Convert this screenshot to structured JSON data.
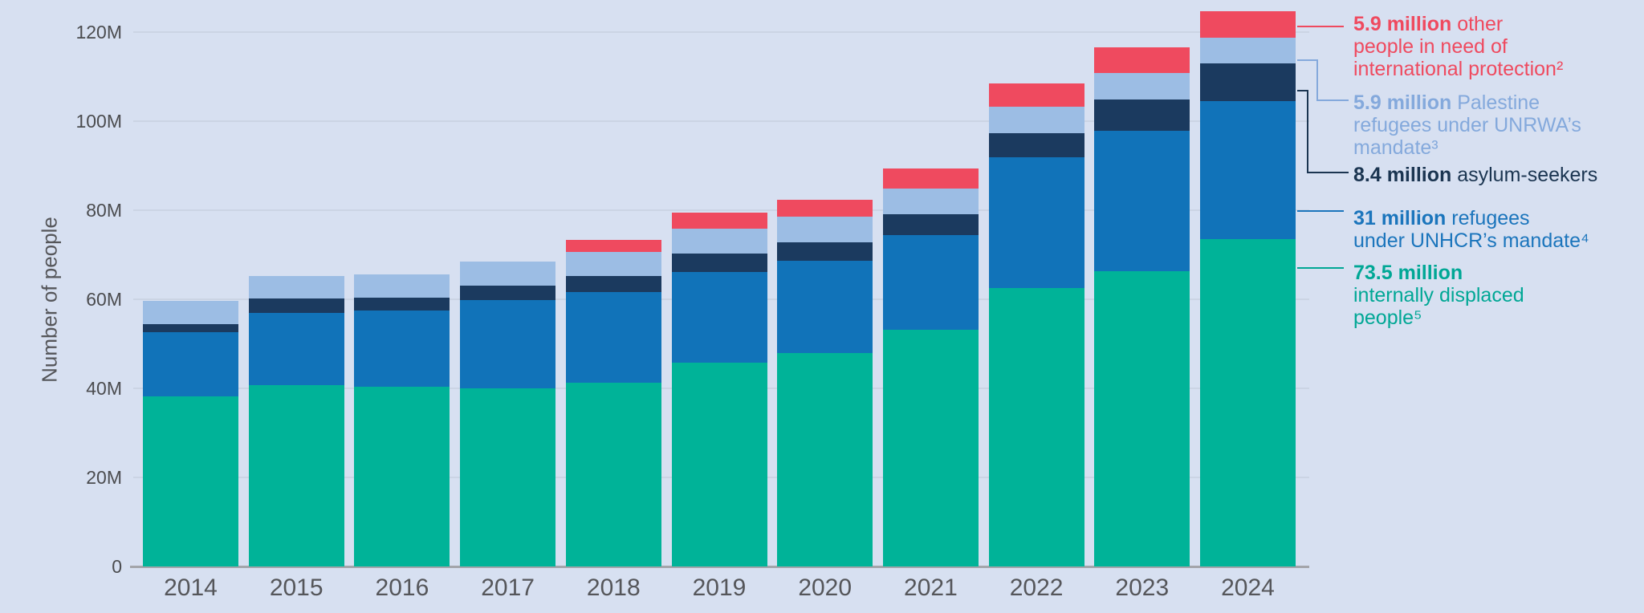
{
  "colors": {
    "idp": "#00b398",
    "refugees": "#1173b9",
    "asylum": "#1b3a5f",
    "unrwa": "#9cbde4",
    "other": "#ef4a5f",
    "background": "#d7e0f1",
    "gridline": "#cbd4e4",
    "axis_line": "#a3a5aa",
    "tick_text": "#4b4c4f",
    "year_text": "#55565a",
    "axis_title_text": "#55565a"
  },
  "chart_data": {
    "type": "bar",
    "stacked": true,
    "title": "",
    "ylabel": "Number of people",
    "unit": "millions of people",
    "grid": true,
    "legend_position": "right",
    "ylim": [
      0,
      120
    ],
    "y_ticks": [
      {
        "label": "0",
        "value": 0
      },
      {
        "label": "20M",
        "value": 20
      },
      {
        "label": "40M",
        "value": 40
      },
      {
        "label": "60M",
        "value": 60
      },
      {
        "label": "80M",
        "value": 80
      },
      {
        "label": "100M",
        "value": 100
      },
      {
        "label": "120M",
        "value": 120
      }
    ],
    "categories": [
      "2014",
      "2015",
      "2016",
      "2017",
      "2018",
      "2019",
      "2020",
      "2021",
      "2022",
      "2023",
      "2024"
    ],
    "series": [
      {
        "name": "Internally displaced people",
        "color_key": "idp",
        "values": [
          38.2,
          40.8,
          40.3,
          40.0,
          41.3,
          45.7,
          48.0,
          53.2,
          62.5,
          66.3,
          73.5
        ]
      },
      {
        "name": "Refugees under UNHCR's mandate",
        "color_key": "refugees",
        "values": [
          14.4,
          16.1,
          17.2,
          19.9,
          20.4,
          20.4,
          20.7,
          21.3,
          29.4,
          31.6,
          31.0
        ]
      },
      {
        "name": "Asylum-seekers",
        "color_key": "asylum",
        "values": [
          1.8,
          3.2,
          2.8,
          3.1,
          3.5,
          4.2,
          4.1,
          4.6,
          5.4,
          6.9,
          8.4
        ]
      },
      {
        "name": "Palestine refugees under UNRWA's mandate",
        "color_key": "unrwa",
        "values": [
          5.2,
          5.2,
          5.3,
          5.4,
          5.5,
          5.6,
          5.7,
          5.8,
          5.9,
          6.0,
          5.9
        ]
      },
      {
        "name": "Other people in need of international protection",
        "color_key": "other",
        "values": [
          0,
          0,
          0,
          0,
          2.6,
          3.6,
          3.9,
          4.4,
          5.2,
          5.8,
          5.9
        ]
      }
    ],
    "totals": [
      59.6,
      65.3,
      65.6,
      68.4,
      73.3,
      79.5,
      82.4,
      89.3,
      108.4,
      116.6,
      124.7
    ]
  },
  "legend": {
    "items": [
      {
        "key": "other",
        "color": "#ef4a5f",
        "amount": "5.9 million",
        "rest": " other",
        "line2": "people in need of",
        "line3": "international protection²"
      },
      {
        "key": "unrwa",
        "color": "#84a9dc",
        "amount": "5.9 million",
        "rest": " Palestine",
        "line2": "refugees under UNRWA’s",
        "line3": "mandate³"
      },
      {
        "key": "asylum",
        "color": "#1b3551",
        "amount": "8.4 million",
        "rest": " asylum-seekers"
      },
      {
        "key": "refugees",
        "color": "#1b75bc",
        "amount": "31 million",
        "rest": " refugees",
        "line2": "under UNHCR’s mandate⁴"
      },
      {
        "key": "idp",
        "color": "#00a795",
        "amount": "73.5 million",
        "rest": "",
        "line2": "internally displaced",
        "line3": "people⁵"
      }
    ]
  }
}
